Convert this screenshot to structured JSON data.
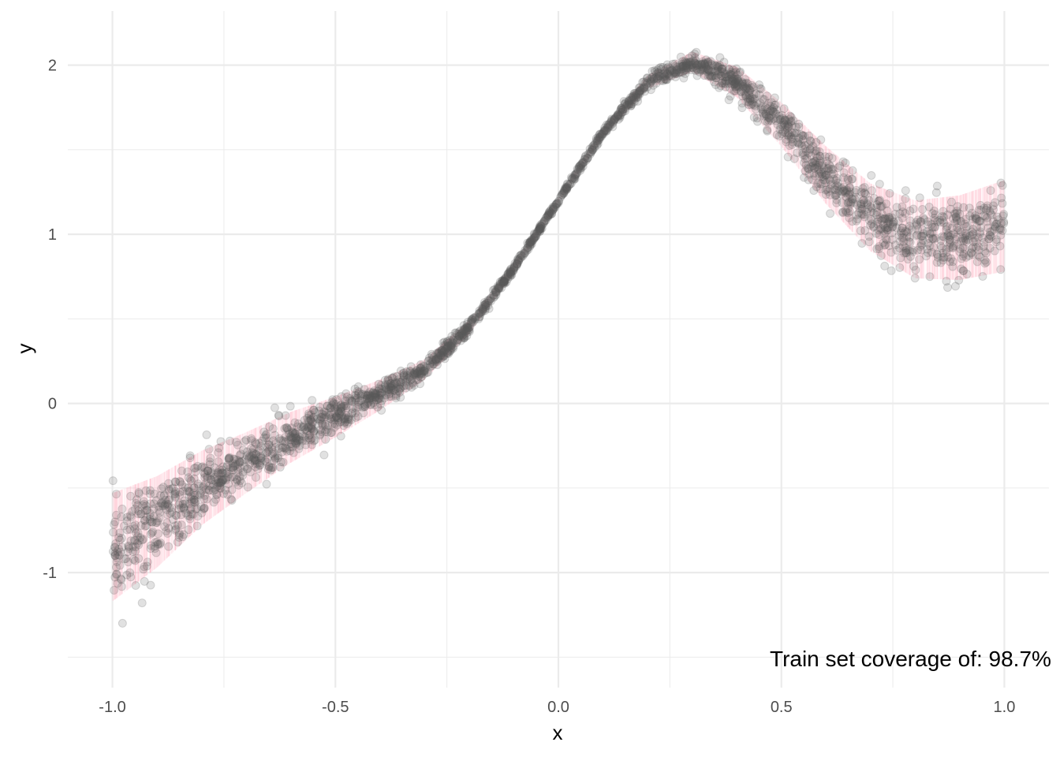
{
  "chart_data": {
    "type": "scatter",
    "title": "",
    "xlabel": "x",
    "ylabel": "y",
    "xlim": [
      -1.1,
      1.1
    ],
    "ylim": [
      -1.68,
      2.32
    ],
    "x_ticks": [
      -1.0,
      -0.5,
      0.0,
      0.5,
      1.0
    ],
    "x_tick_labels": [
      "-1.0",
      "-0.5",
      "0.0",
      "0.5",
      "1.0"
    ],
    "x_minor_ticks": [
      -0.75,
      -0.25,
      0.25,
      0.75
    ],
    "y_ticks": [
      -1,
      0,
      1,
      2
    ],
    "y_tick_labels": [
      "-1",
      "0",
      "1",
      "2"
    ],
    "y_minor_ticks": [
      -1.5,
      -0.5,
      0.5,
      1.5
    ],
    "grid": true,
    "legend": "none",
    "annotation": "Train set coverage of: 98.7%",
    "colors": {
      "points": "#5a5a5a",
      "intervals": "#ffb6c8",
      "grid": "#ebebeb"
    },
    "series": [
      {
        "type": "scatter",
        "x": [
          -1.0,
          -0.9,
          -0.8,
          -0.7,
          -0.6,
          -0.5,
          -0.4,
          -0.3,
          -0.2,
          -0.1,
          0.0,
          0.1,
          0.2,
          0.3,
          0.4,
          0.5,
          0.6,
          0.7,
          0.8,
          0.9,
          1.0
        ],
        "y": [
          -0.85,
          -0.7,
          -0.5,
          -0.35,
          -0.2,
          -0.08,
          0.05,
          0.2,
          0.45,
          0.8,
          1.2,
          1.6,
          1.9,
          2.02,
          1.9,
          1.65,
          1.35,
          1.1,
          0.97,
          0.98,
          1.05
        ]
      },
      {
        "type": "interval",
        "x": [
          -1.0,
          -0.9,
          -0.8,
          -0.7,
          -0.6,
          -0.5,
          -0.4,
          -0.3,
          -0.2,
          -0.1,
          0.0,
          0.1,
          0.2,
          0.3,
          0.4,
          0.5,
          0.6,
          0.7,
          0.8,
          0.9,
          1.0
        ],
        "half_width": [
          0.32,
          0.27,
          0.22,
          0.18,
          0.15,
          0.12,
          0.09,
          0.06,
          0.04,
          0.025,
          0.015,
          0.025,
          0.04,
          0.06,
          0.09,
          0.13,
          0.17,
          0.2,
          0.23,
          0.25,
          0.27
        ]
      }
    ]
  }
}
